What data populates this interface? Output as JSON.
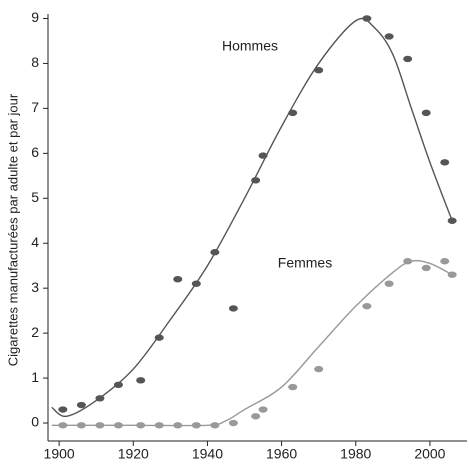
{
  "chart_data": {
    "type": "scatter",
    "y_label": "Cigarettes manufacturées par adulte et par jour",
    "xlim": [
      1897,
      2010
    ],
    "ylim": [
      -0.4,
      9.1
    ],
    "xticks": [
      1900,
      1920,
      1940,
      1960,
      1980,
      2000
    ],
    "yticks": [
      0,
      1,
      2,
      3,
      4,
      5,
      6,
      7,
      8,
      9
    ],
    "grid": false,
    "series": [
      {
        "name": "Hommes",
        "color": "#555555",
        "x": [
          1901,
          1906,
          1911,
          1916,
          1922,
          1927,
          1932,
          1937,
          1942,
          1947,
          1953,
          1955,
          1963,
          1970,
          1983,
          1989,
          1994,
          1999,
          2004,
          2006
        ],
        "values": [
          0.3,
          0.4,
          0.55,
          0.85,
          0.95,
          1.9,
          3.2,
          3.1,
          3.8,
          2.55,
          5.4,
          5.95,
          6.9,
          7.85,
          9.0,
          8.6,
          8.1,
          6.9,
          5.8,
          4.5
        ],
        "fit_x": [
          1898,
          1902,
          1910,
          1920,
          1930,
          1940,
          1950,
          1960,
          1970,
          1980,
          1985,
          1990,
          1995,
          2000,
          2006
        ],
        "fit_values": [
          0.35,
          0.15,
          0.5,
          1.2,
          2.3,
          3.5,
          5.0,
          6.6,
          8.0,
          8.95,
          8.8,
          8.2,
          7.0,
          5.8,
          4.5
        ]
      },
      {
        "name": "Femmes",
        "color": "#999999",
        "x": [
          1901,
          1906,
          1911,
          1916,
          1922,
          1927,
          1932,
          1937,
          1942,
          1947,
          1953,
          1955,
          1963,
          1970,
          1983,
          1989,
          1994,
          1999,
          2004,
          2006
        ],
        "values": [
          -0.05,
          -0.05,
          -0.05,
          -0.05,
          -0.05,
          -0.05,
          -0.05,
          -0.05,
          -0.05,
          0.0,
          0.15,
          0.3,
          0.8,
          1.2,
          2.6,
          3.1,
          3.6,
          3.45,
          3.6,
          3.3
        ],
        "fit_x": [
          1898,
          1920,
          1940,
          1945,
          1950,
          1960,
          1970,
          1980,
          1990,
          1995,
          2000,
          2006
        ],
        "fit_values": [
          -0.05,
          -0.05,
          -0.05,
          0.05,
          0.3,
          0.8,
          1.7,
          2.6,
          3.35,
          3.6,
          3.55,
          3.3
        ]
      }
    ]
  }
}
